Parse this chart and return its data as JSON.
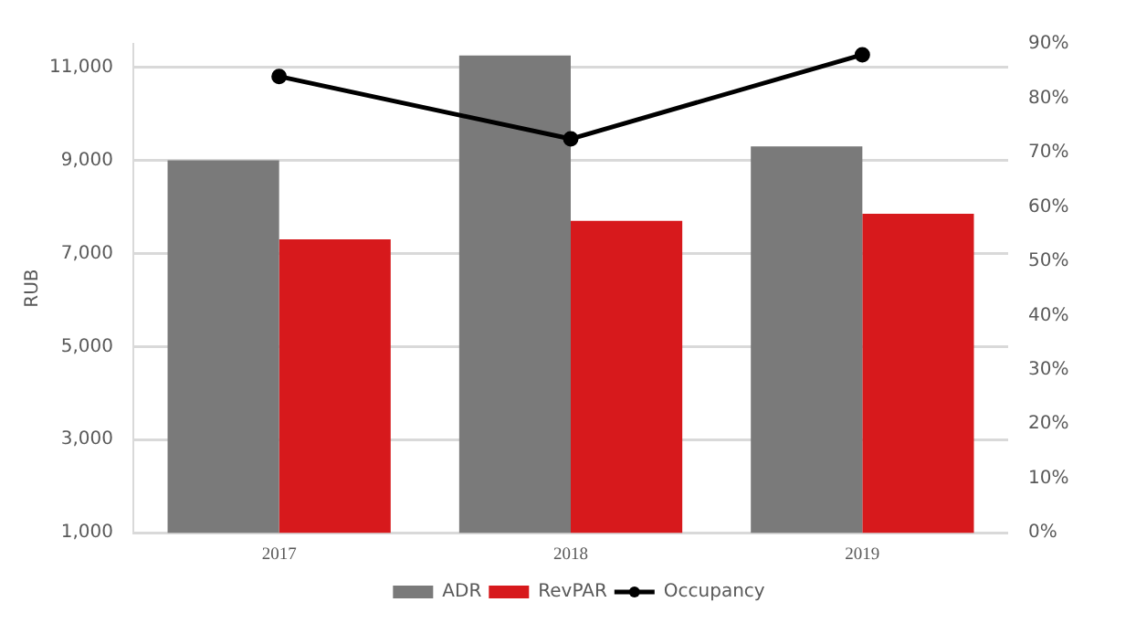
{
  "chart_data": {
    "type": "bar",
    "categories": [
      "2017",
      "2018",
      "2019"
    ],
    "ylabel": "RUB",
    "series": [
      {
        "name": "ADR",
        "color": "#7a7a7a",
        "values": [
          9000,
          11250,
          9300
        ]
      },
      {
        "name": "RevPAR",
        "color": "#d7191c",
        "values": [
          7300,
          7700,
          7850
        ]
      },
      {
        "name": "Occupancy",
        "type": "line",
        "axis": "y2",
        "color": "#000000",
        "values": [
          84,
          72.5,
          88
        ]
      }
    ],
    "ylim": [
      1000,
      11500
    ],
    "yticks": [
      {
        "value": 1000,
        "label": "1,000"
      },
      {
        "value": 3000,
        "label": "3,000"
      },
      {
        "value": 5000,
        "label": "5,000"
      },
      {
        "value": 7000,
        "label": "7,000"
      },
      {
        "value": 9000,
        "label": "9,000"
      },
      {
        "value": 11000,
        "label": "11,000"
      }
    ],
    "y2lim": [
      0,
      90
    ],
    "y2ticks": [
      {
        "value": 0,
        "label": "0%"
      },
      {
        "value": 10,
        "label": "10%"
      },
      {
        "value": 20,
        "label": "20%"
      },
      {
        "value": 30,
        "label": "30%"
      },
      {
        "value": 40,
        "label": "40%"
      },
      {
        "value": 50,
        "label": "50%"
      },
      {
        "value": 60,
        "label": "60%"
      },
      {
        "value": 70,
        "label": "70%"
      },
      {
        "value": 80,
        "label": "80%"
      },
      {
        "value": 90,
        "label": "90%"
      }
    ],
    "grid": "y",
    "legend": "bottom",
    "marker": "circle"
  }
}
